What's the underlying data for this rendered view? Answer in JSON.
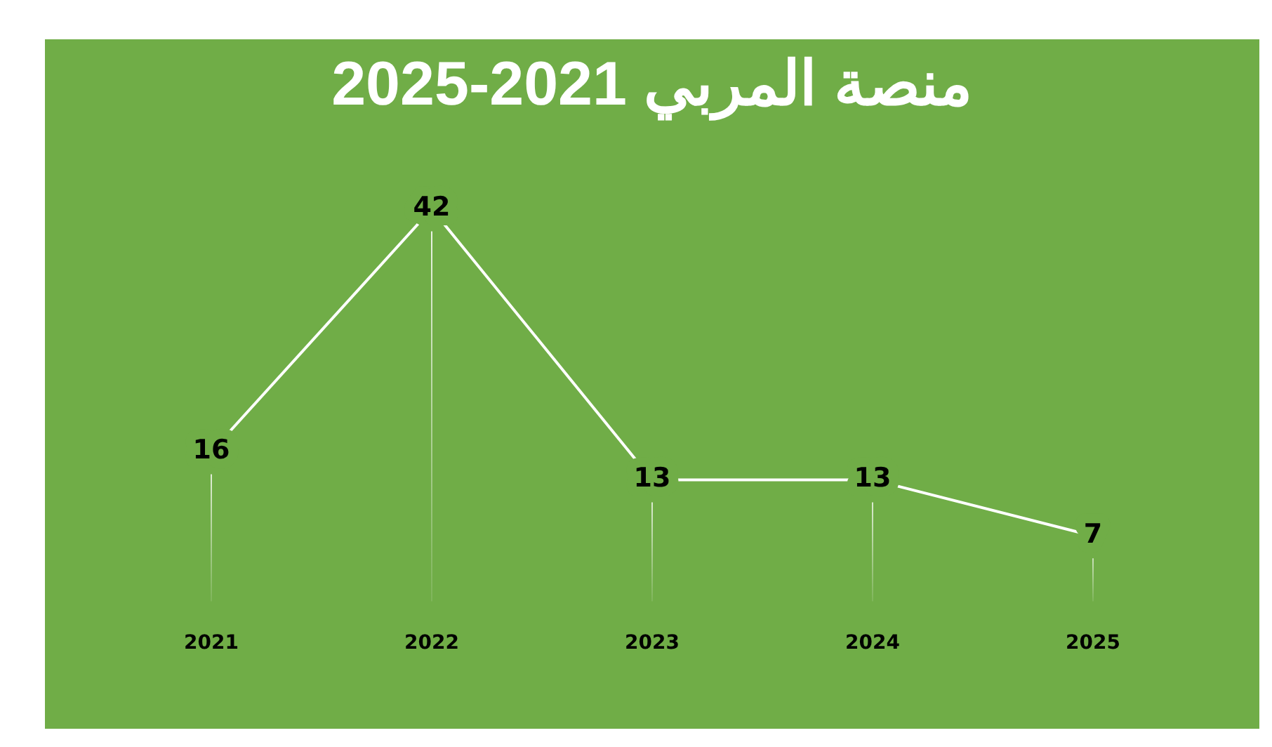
{
  "chart_data": {
    "type": "line",
    "title": "منصة المربي 2021-2025",
    "categories": [
      "2021",
      "2022",
      "2023",
      "2024",
      "2025"
    ],
    "series": [
      {
        "color": "#ffffff",
        "values": [
          16,
          42,
          13,
          13,
          7
        ]
      }
    ],
    "tick_labels": "x",
    "grid": "x",
    "legend": false,
    "data_labels": true
  }
}
